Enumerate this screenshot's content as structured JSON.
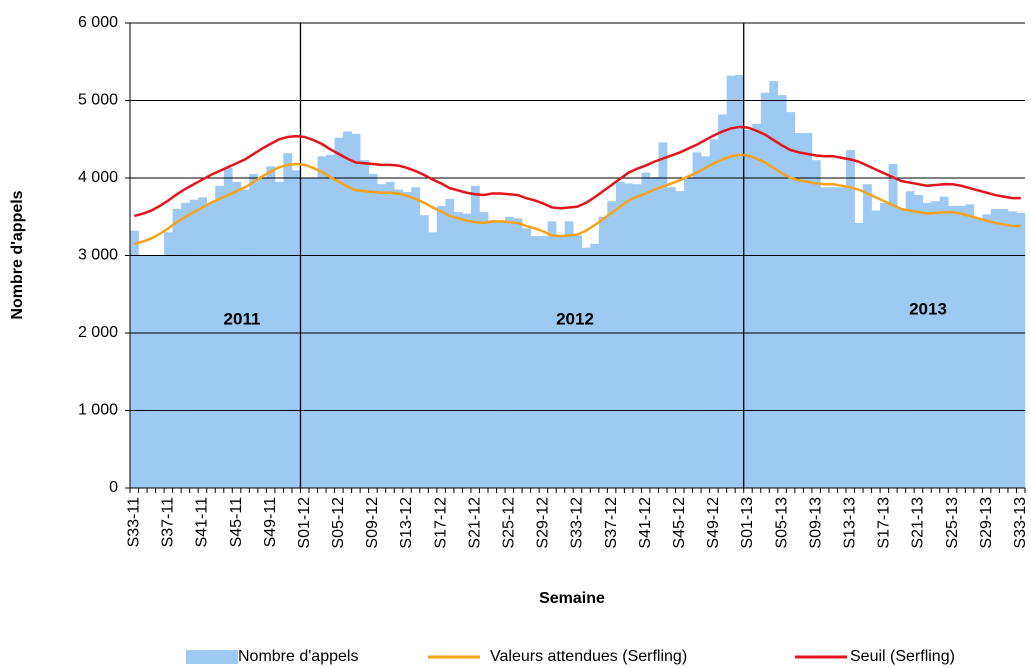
{
  "chart_data": {
    "type": "bar-line",
    "x_label": "Semaine",
    "y_label": "Nombre d'appels",
    "annotations": [
      "2011",
      "2012",
      "2013"
    ],
    "categories": [
      "S33-11",
      null,
      null,
      null,
      "S37-11",
      null,
      null,
      null,
      "S41-11",
      null,
      null,
      null,
      "S45-11",
      null,
      null,
      null,
      "S49-11",
      null,
      null,
      null,
      "S01-12",
      null,
      null,
      null,
      "S05-12",
      null,
      null,
      null,
      "S09-12",
      null,
      null,
      null,
      "S13-12",
      null,
      null,
      null,
      "S17-12",
      null,
      null,
      null,
      "S21-12",
      null,
      null,
      null,
      "S25-12",
      null,
      null,
      null,
      "S29-12",
      null,
      null,
      null,
      "S33-12",
      null,
      null,
      null,
      "S37-12",
      null,
      null,
      null,
      "S41-12",
      null,
      null,
      null,
      "S45-12",
      null,
      null,
      null,
      "S49-12",
      null,
      null,
      null,
      "S01-13",
      null,
      null,
      null,
      "S05-13",
      null,
      null,
      null,
      "S09-13",
      null,
      null,
      null,
      "S13-13",
      null,
      null,
      null,
      "S17-13",
      null,
      null,
      null,
      "S21-13",
      null,
      null,
      null,
      "S25-13",
      null,
      null,
      null,
      "S29-13",
      null,
      null,
      null,
      "S33-13"
    ],
    "series": [
      {
        "name": "Nombre d'appels",
        "kind": "bar",
        "color": "#9dc9f2",
        "values": [
          3320,
          3000,
          3000,
          3000,
          3300,
          3600,
          3680,
          3720,
          3750,
          3680,
          3900,
          4130,
          3950,
          3850,
          4050,
          4000,
          4150,
          3950,
          4320,
          4100,
          4000,
          4000,
          4280,
          4300,
          4520,
          4600,
          4570,
          4230,
          4050,
          3920,
          3950,
          3850,
          3820,
          3880,
          3520,
          3300,
          3640,
          3730,
          3560,
          3540,
          3900,
          3560,
          3450,
          3430,
          3500,
          3480,
          3350,
          3250,
          3250,
          3440,
          3250,
          3440,
          3260,
          3100,
          3150,
          3500,
          3700,
          3950,
          3930,
          3920,
          4070,
          4010,
          4460,
          3880,
          3830,
          4000,
          4330,
          4280,
          4500,
          4820,
          5320,
          5330,
          4620,
          4700,
          5100,
          5250,
          5070,
          4850,
          4580,
          4580,
          4230,
          3880,
          3880,
          3880,
          4360,
          3420,
          3920,
          3580,
          3680,
          4180,
          3600,
          3830,
          3780,
          3680,
          3700,
          3760,
          3640,
          3640,
          3660,
          3480,
          3530,
          3600,
          3600,
          3570,
          3550
        ]
      },
      {
        "name": "Valeurs attendues (Serfling)",
        "kind": "line",
        "color": "#f7a21b",
        "values": [
          3150,
          3180,
          3220,
          3280,
          3350,
          3430,
          3500,
          3560,
          3620,
          3680,
          3730,
          3780,
          3830,
          3880,
          3950,
          4020,
          4080,
          4140,
          4170,
          4180,
          4170,
          4130,
          4080,
          4010,
          3950,
          3890,
          3840,
          3830,
          3820,
          3810,
          3810,
          3800,
          3770,
          3730,
          3680,
          3620,
          3570,
          3510,
          3480,
          3450,
          3430,
          3420,
          3440,
          3440,
          3430,
          3420,
          3380,
          3350,
          3310,
          3260,
          3250,
          3260,
          3270,
          3320,
          3390,
          3470,
          3550,
          3630,
          3710,
          3760,
          3800,
          3850,
          3890,
          3930,
          3970,
          4020,
          4070,
          4130,
          4190,
          4240,
          4280,
          4300,
          4290,
          4250,
          4200,
          4130,
          4060,
          4000,
          3970,
          3950,
          3930,
          3920,
          3920,
          3900,
          3880,
          3850,
          3800,
          3750,
          3700,
          3650,
          3600,
          3580,
          3560,
          3540,
          3550,
          3560,
          3560,
          3540,
          3510,
          3480,
          3450,
          3420,
          3400,
          3380,
          3380
        ]
      },
      {
        "name": "Seuil (Serfling)",
        "kind": "line",
        "color": "#e3141c",
        "values": [
          3510,
          3540,
          3580,
          3640,
          3710,
          3790,
          3860,
          3920,
          3980,
          4040,
          4090,
          4140,
          4190,
          4240,
          4310,
          4380,
          4440,
          4500,
          4530,
          4540,
          4530,
          4490,
          4440,
          4370,
          4310,
          4250,
          4200,
          4190,
          4180,
          4170,
          4170,
          4160,
          4130,
          4090,
          4040,
          3980,
          3930,
          3870,
          3840,
          3810,
          3790,
          3780,
          3800,
          3800,
          3790,
          3780,
          3740,
          3710,
          3670,
          3620,
          3610,
          3620,
          3630,
          3680,
          3750,
          3830,
          3910,
          3990,
          4070,
          4120,
          4160,
          4210,
          4250,
          4290,
          4330,
          4380,
          4430,
          4490,
          4550,
          4600,
          4640,
          4660,
          4650,
          4610,
          4560,
          4490,
          4420,
          4360,
          4330,
          4310,
          4290,
          4280,
          4280,
          4260,
          4240,
          4210,
          4160,
          4110,
          4060,
          4010,
          3960,
          3940,
          3920,
          3900,
          3910,
          3920,
          3920,
          3900,
          3870,
          3840,
          3810,
          3780,
          3760,
          3740,
          3740
        ]
      }
    ],
    "ylim": [
      0,
      6000
    ],
    "yticks": [
      0,
      {
        "value": 1000,
        "label": "1 000"
      },
      {
        "value": 2000,
        "label": "2 000"
      },
      {
        "value": 3000,
        "label": "3 000"
      },
      {
        "value": 4000,
        "label": "4 000"
      },
      {
        "value": 5000,
        "label": "5 000"
      },
      {
        "value": 6000,
        "label": "6 000"
      }
    ],
    "grid": true
  }
}
